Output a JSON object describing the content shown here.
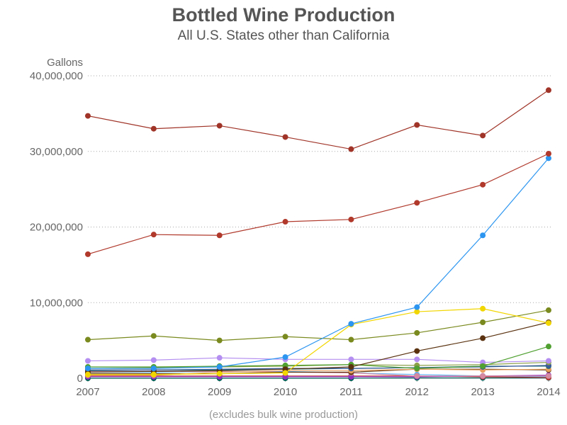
{
  "chart_data": {
    "type": "line",
    "title": "Bottled Wine Production",
    "subtitle": "All U.S. States other than California",
    "ylabel": "Gallons",
    "xlabel": "",
    "footnote": "(excludes bulk wine production)",
    "x": [
      2007,
      2008,
      2009,
      2010,
      2011,
      2012,
      2013,
      2014
    ],
    "x_tick_labels": [
      "2007",
      "2008",
      "2009",
      "2010",
      "2011",
      "2012",
      "2013",
      "2014"
    ],
    "ylim": [
      0,
      40000000
    ],
    "y_ticks": [
      0,
      10000000,
      20000000,
      30000000,
      40000000
    ],
    "y_tick_labels": [
      "0",
      "10,000,000",
      "20,000,000",
      "30,000,000",
      "40,000,000"
    ],
    "grid": "horizontal dotted",
    "legend": "none",
    "series": [
      {
        "color": "#a03428",
        "values": [
          34700000,
          33000000,
          33400000,
          31900000,
          30300000,
          33500000,
          32100000,
          38100000
        ]
      },
      {
        "color": "#b0392c",
        "values": [
          16400000,
          19000000,
          18900000,
          20700000,
          21000000,
          23200000,
          25600000,
          29700000
        ]
      },
      {
        "color": "#2b95f0",
        "values": [
          1300000,
          1300000,
          1500000,
          2800000,
          7200000,
          9400000,
          18900000,
          29100000
        ]
      },
      {
        "color": "#f2d600",
        "values": [
          500000,
          500000,
          600000,
          700000,
          7100000,
          8800000,
          9200000,
          7300000
        ]
      },
      {
        "color": "#7a8a1e",
        "values": [
          5100000,
          5600000,
          5000000,
          5500000,
          5100000,
          6000000,
          7400000,
          9000000
        ]
      },
      {
        "color": "#5a3210",
        "values": [
          800000,
          900000,
          1000000,
          1200000,
          1500000,
          3600000,
          5300000,
          7400000
        ]
      },
      {
        "color": "#4fa030",
        "values": [
          1500000,
          1500000,
          1600000,
          1700000,
          1800000,
          1300000,
          1600000,
          4200000
        ]
      },
      {
        "color": "#b48ef0",
        "values": [
          2300000,
          2400000,
          2700000,
          2500000,
          2500000,
          2500000,
          2100000,
          2300000
        ]
      },
      {
        "color": "#8ba048",
        "values": [
          1300000,
          1400000,
          1500000,
          1600000,
          1800000,
          1700000,
          1800000,
          2100000
        ]
      },
      {
        "color": "#3a5a9a",
        "values": [
          1100000,
          1100000,
          1200000,
          1300000,
          1300000,
          1400000,
          1500000,
          1700000
        ]
      },
      {
        "color": "#1a7070",
        "values": [
          1000000,
          1100000,
          1100000,
          1200000,
          1300000,
          1400000,
          1600000,
          1600000
        ]
      },
      {
        "color": "#e8a060",
        "values": [
          400000,
          400000,
          800000,
          1000000,
          1000000,
          1200000,
          1100000,
          1200000
        ]
      },
      {
        "color": "#603810",
        "values": [
          600000,
          600000,
          600000,
          800000,
          800000,
          1200000,
          1200000,
          1100000
        ]
      },
      {
        "color": "#d48aa0",
        "values": [
          900000,
          900000,
          900000,
          800000,
          700000,
          300000,
          300000,
          300000
        ]
      },
      {
        "color": "#9030c0",
        "values": [
          200000,
          200000,
          200000,
          200000,
          200000,
          200000,
          300000,
          400000
        ]
      },
      {
        "color": "#c03030",
        "values": [
          300000,
          300000,
          300000,
          300000,
          300000,
          300000,
          200000,
          100000
        ]
      },
      {
        "color": "#60b8f8",
        "values": [
          800000,
          800000,
          900000,
          900000,
          700000,
          500000,
          300000,
          200000
        ]
      },
      {
        "color": "#006058",
        "values": [
          0,
          0,
          0,
          0,
          0,
          50000,
          50000,
          50000
        ]
      }
    ]
  }
}
